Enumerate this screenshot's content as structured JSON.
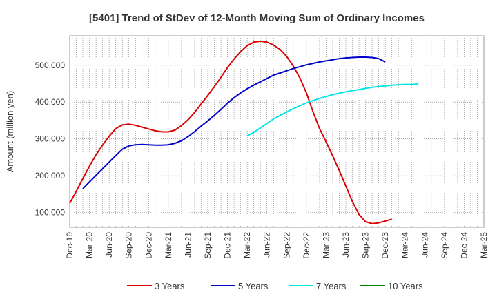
{
  "chart_data": {
    "type": "line",
    "title": "[5401]  Trend of StDev of 12-Month Moving Sum of Ordinary Incomes",
    "ylabel": "Amount (million yen)",
    "xlabel": "",
    "x_ticks": [
      "Dec-19",
      "Mar-20",
      "Jun-20",
      "Sep-20",
      "Dec-20",
      "Mar-21",
      "Jun-21",
      "Sep-21",
      "Dec-21",
      "Mar-22",
      "Jun-22",
      "Sep-22",
      "Dec-22",
      "Mar-23",
      "Jun-23",
      "Sep-23",
      "Dec-23",
      "Mar-24",
      "Jun-24",
      "Sep-24",
      "Dec-24",
      "Mar-25"
    ],
    "y_ticks": [
      100000,
      200000,
      300000,
      400000,
      500000
    ],
    "y_tick_labels": [
      "100,000",
      "200,000",
      "300,000",
      "400,000",
      "500,000"
    ],
    "ylim": [
      60000,
      580000
    ],
    "grid": true,
    "legend_position": "bottom",
    "series": [
      {
        "name": "3 Years",
        "color": "#dd0000",
        "values": [
          [
            0,
            125000
          ],
          [
            1,
            158000
          ],
          [
            2,
            192000
          ],
          [
            3,
            226000
          ],
          [
            4,
            257000
          ],
          [
            5,
            283000
          ],
          [
            6,
            307000
          ],
          [
            7,
            328000
          ],
          [
            8,
            338000
          ],
          [
            9,
            340000
          ],
          [
            10,
            337000
          ],
          [
            11,
            332000
          ],
          [
            12,
            327000
          ],
          [
            13,
            322000
          ],
          [
            14,
            319000
          ],
          [
            15,
            319000
          ],
          [
            16,
            324000
          ],
          [
            17,
            336000
          ],
          [
            18,
            352000
          ],
          [
            19,
            372000
          ],
          [
            20,
            395000
          ],
          [
            21,
            418000
          ],
          [
            22,
            442000
          ],
          [
            23,
            467000
          ],
          [
            24,
            494000
          ],
          [
            25,
            517000
          ],
          [
            26,
            537000
          ],
          [
            27,
            553000
          ],
          [
            28,
            563000
          ],
          [
            29,
            565000
          ],
          [
            30,
            563000
          ],
          [
            31,
            555000
          ],
          [
            32,
            543000
          ],
          [
            33,
            524000
          ],
          [
            34,
            498000
          ],
          [
            35,
            466000
          ],
          [
            36,
            425000
          ],
          [
            37,
            374000
          ],
          [
            38,
            328000
          ],
          [
            39,
            292000
          ],
          [
            40,
            254000
          ],
          [
            41,
            214000
          ],
          [
            42,
            172000
          ],
          [
            43,
            130000
          ],
          [
            44,
            95000
          ],
          [
            45,
            75000
          ],
          [
            46,
            70000
          ],
          [
            47,
            72000
          ],
          [
            48,
            77000
          ],
          [
            49,
            82000
          ]
        ]
      },
      {
        "name": "5 Years",
        "color": "#0000cc",
        "values": [
          [
            2,
            165000
          ],
          [
            3,
            183000
          ],
          [
            4,
            201000
          ],
          [
            5,
            219000
          ],
          [
            6,
            237000
          ],
          [
            7,
            255000
          ],
          [
            8,
            272000
          ],
          [
            9,
            281000
          ],
          [
            10,
            284000
          ],
          [
            11,
            285000
          ],
          [
            12,
            284000
          ],
          [
            13,
            283000
          ],
          [
            14,
            283000
          ],
          [
            15,
            284000
          ],
          [
            16,
            288000
          ],
          [
            17,
            295000
          ],
          [
            18,
            306000
          ],
          [
            19,
            320000
          ],
          [
            20,
            335000
          ],
          [
            21,
            349000
          ],
          [
            22,
            364000
          ],
          [
            23,
            380000
          ],
          [
            24,
            397000
          ],
          [
            25,
            412000
          ],
          [
            26,
            425000
          ],
          [
            27,
            436000
          ],
          [
            28,
            446000
          ],
          [
            29,
            455000
          ],
          [
            30,
            464000
          ],
          [
            31,
            473000
          ],
          [
            32,
            479000
          ],
          [
            33,
            485000
          ],
          [
            34,
            491000
          ],
          [
            35,
            496000
          ],
          [
            36,
            501000
          ],
          [
            37,
            505000
          ],
          [
            38,
            509000
          ],
          [
            39,
            512000
          ],
          [
            40,
            515000
          ],
          [
            41,
            518000
          ],
          [
            42,
            520000
          ],
          [
            43,
            521000
          ],
          [
            44,
            522000
          ],
          [
            45,
            522000
          ],
          [
            46,
            521000
          ],
          [
            47,
            518000
          ],
          [
            48,
            509000
          ]
        ]
      },
      {
        "name": "7 Years",
        "color": "#00e5e5",
        "values": [
          [
            27,
            308000
          ],
          [
            28,
            318000
          ],
          [
            29,
            330000
          ],
          [
            30,
            342000
          ],
          [
            31,
            354000
          ],
          [
            32,
            364000
          ],
          [
            33,
            373000
          ],
          [
            34,
            382000
          ],
          [
            35,
            390000
          ],
          [
            36,
            398000
          ],
          [
            37,
            404000
          ],
          [
            38,
            410000
          ],
          [
            39,
            415000
          ],
          [
            40,
            420000
          ],
          [
            41,
            424000
          ],
          [
            42,
            428000
          ],
          [
            43,
            431000
          ],
          [
            44,
            434000
          ],
          [
            45,
            437000
          ],
          [
            46,
            440000
          ],
          [
            47,
            442000
          ],
          [
            48,
            444000
          ],
          [
            49,
            446000
          ],
          [
            50,
            447000
          ],
          [
            51,
            448000
          ],
          [
            52,
            448000
          ],
          [
            53,
            449000
          ]
        ]
      },
      {
        "name": "10 Years",
        "color": "#008800",
        "values": []
      }
    ]
  }
}
